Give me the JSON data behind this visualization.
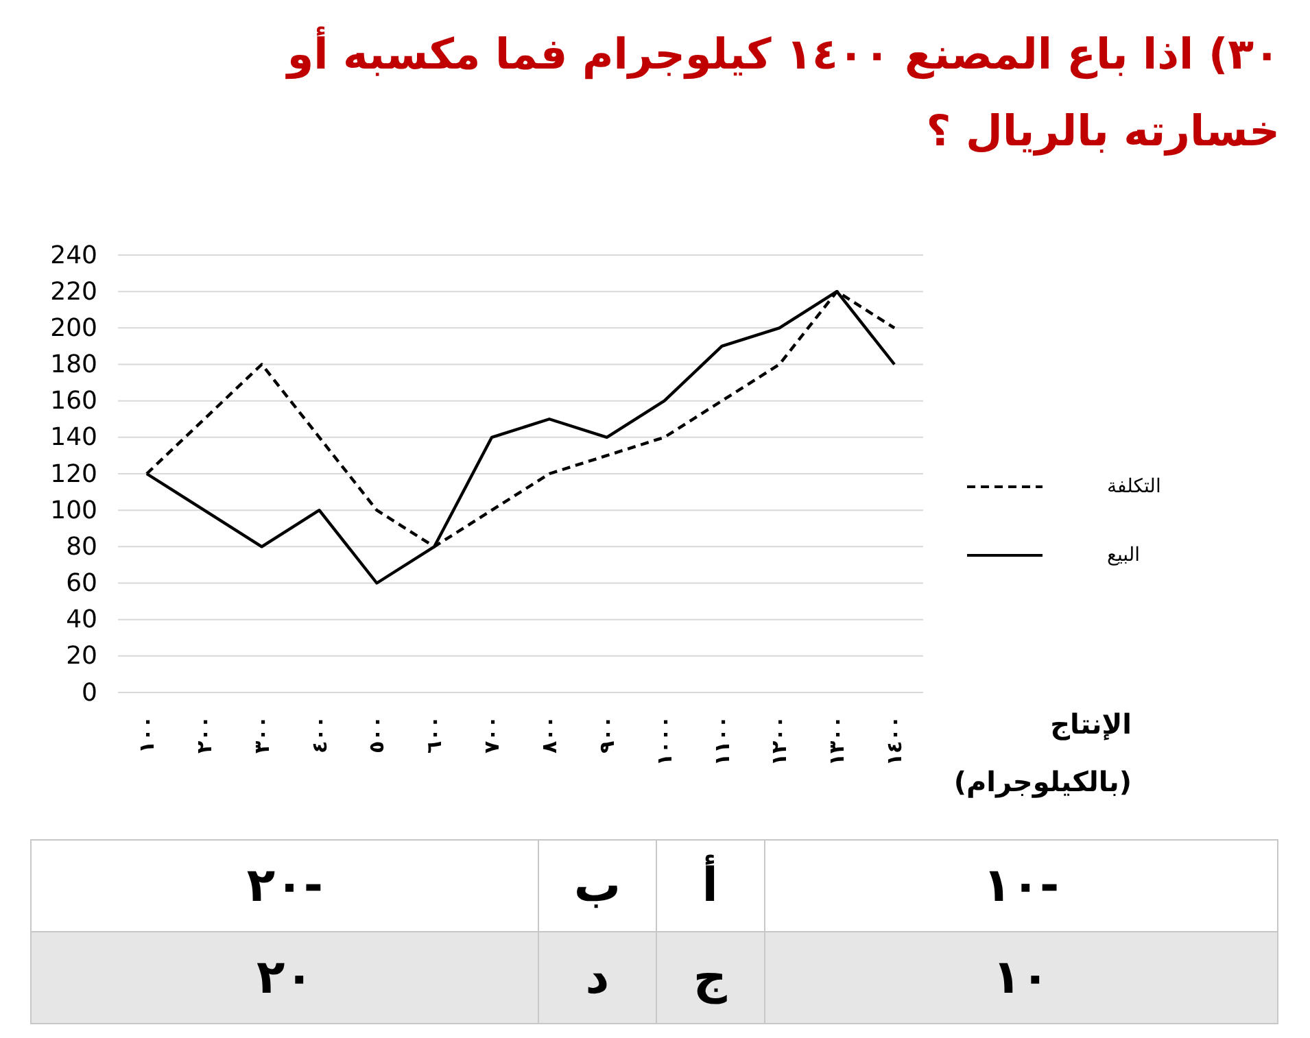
{
  "chart_data": {
    "type": "line",
    "title": "٣٠)     اذا باع المصنع ١٤٠٠ كيلوجرام فما مكسبه أو خسارته بالريال ؟",
    "xlabel": "الإنتاج (بالكيلوجرام)",
    "categories": [
      "١٠٠",
      "٢٠٠",
      "٣٠٠",
      "٤٠٠",
      "٥٠٠",
      "٦٠٠",
      "٧٠٠",
      "٨٠٠",
      "٩٠٠",
      "١٠٠٠",
      "١١٠٠",
      "١٢٠٠",
      "١٣٠٠",
      "١٤٠٠"
    ],
    "series": [
      {
        "name": "التكلفة",
        "color": "#000000",
        "line_style": "dashed",
        "values": [
          120,
          150,
          180,
          140,
          100,
          80,
          100,
          120,
          130,
          140,
          160,
          180,
          220,
          200
        ]
      },
      {
        "name": "البيع",
        "color": "#000000",
        "line_style": "solid",
        "values": [
          120,
          100,
          80,
          100,
          60,
          80,
          140,
          150,
          140,
          160,
          190,
          200,
          220,
          180
        ]
      }
    ],
    "ylim": [
      0,
      240
    ],
    "yticks": [
      0,
      20,
      40,
      60,
      80,
      100,
      120,
      140,
      160,
      180,
      200,
      220,
      240
    ],
    "grid": "y",
    "legend": "right",
    "marker": "none",
    "annotations": [
      "أ",
      "١٠-",
      "ب",
      "٢٠-",
      "ج",
      "١٠",
      "د",
      "٢٠"
    ]
  }
}
